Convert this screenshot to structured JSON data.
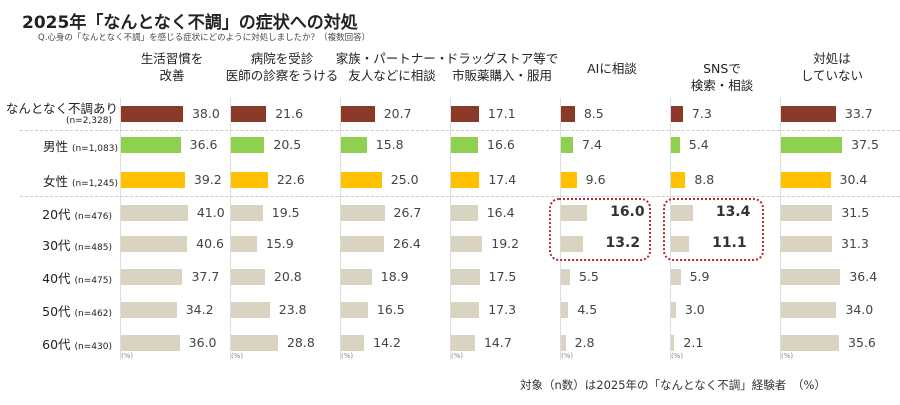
{
  "chart_data": {
    "type": "bar",
    "title": "2025年「なんとなく不調」の症状への対処",
    "subtitle": "Q.心身の「なんとなく不調」を感じる症状にどのように対処しましたか？（複数回答）",
    "footnote": "対象（n数）は2025年の「なんとなく不調」経験者　（%）",
    "unit_label": "(%)",
    "categories": [
      {
        "line1": "生活習慣を",
        "line2": "改善"
      },
      {
        "line1": "病院を受診",
        "line2": "医師の診察をうける"
      },
      {
        "line1": "家族・パートナー・",
        "line2": "友人などに相談"
      },
      {
        "line1": "ドラッグストア等で",
        "line2": "市販薬購入・服用"
      },
      {
        "line1": "AIに相談",
        "line2": ""
      },
      {
        "line1": "SNSで",
        "line2": "検索・相談"
      },
      {
        "line1": "対処は",
        "line2": "していない"
      }
    ],
    "series": [
      {
        "name": "なんとなく不調あり",
        "n": "(n=2,328)",
        "color": "#8b3a2a",
        "values": [
          38.0,
          21.6,
          20.7,
          17.1,
          8.5,
          7.3,
          33.7
        ]
      },
      {
        "name": "男性",
        "n": "(n=1,083)",
        "color": "#8fd14f",
        "values": [
          36.6,
          20.5,
          15.8,
          16.6,
          7.4,
          5.4,
          37.5
        ]
      },
      {
        "name": "女性",
        "n": "(n=1,245)",
        "color": "#ffc000",
        "values": [
          39.2,
          22.6,
          25.0,
          17.4,
          9.6,
          8.8,
          30.4
        ]
      },
      {
        "name": "20代",
        "n": "(n=476)",
        "color": "#d9d3c1",
        "values": [
          41.0,
          19.5,
          26.7,
          16.4,
          16.0,
          13.4,
          31.5
        ]
      },
      {
        "name": "30代",
        "n": "(n=485)",
        "color": "#d9d3c1",
        "values": [
          40.6,
          15.9,
          26.4,
          19.2,
          13.2,
          11.1,
          31.3
        ]
      },
      {
        "name": "40代",
        "n": "(n=475)",
        "color": "#d9d3c1",
        "values": [
          37.7,
          20.8,
          18.9,
          17.5,
          5.5,
          5.9,
          36.4
        ]
      },
      {
        "name": "50代",
        "n": "(n=462)",
        "color": "#d9d3c1",
        "values": [
          34.2,
          23.8,
          16.5,
          17.3,
          4.5,
          3.0,
          34.0
        ]
      },
      {
        "name": "60代",
        "n": "(n=430)",
        "color": "#d9d3c1",
        "values": [
          36.0,
          28.8,
          14.2,
          14.7,
          2.8,
          2.1,
          35.6
        ]
      }
    ],
    "highlighted": "20代・30代 の AIに相談 と SNSで検索・相談",
    "highlight_color": "#b03030"
  }
}
